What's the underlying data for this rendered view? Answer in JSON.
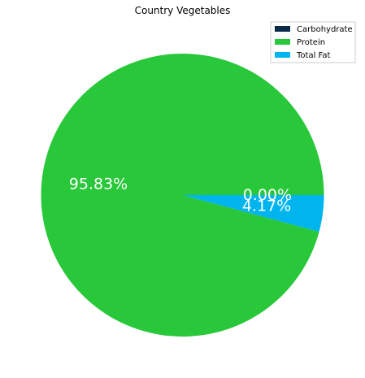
{
  "chart_data": {
    "type": "pie",
    "title": "Country Vegetables",
    "slices": [
      {
        "label": "Carbohydrate",
        "value": 0.0,
        "pct_label": "0.00%",
        "color": "#0b2a4a"
      },
      {
        "label": "Protein",
        "value": 95.83,
        "pct_label": "95.83%",
        "color": "#28c83a"
      },
      {
        "label": "Total Fat",
        "value": 4.17,
        "pct_label": "4.17%",
        "color": "#00b4ee"
      }
    ],
    "legend_position": "top-right",
    "start_angle_deg": 0,
    "direction": "counterclockwise"
  }
}
